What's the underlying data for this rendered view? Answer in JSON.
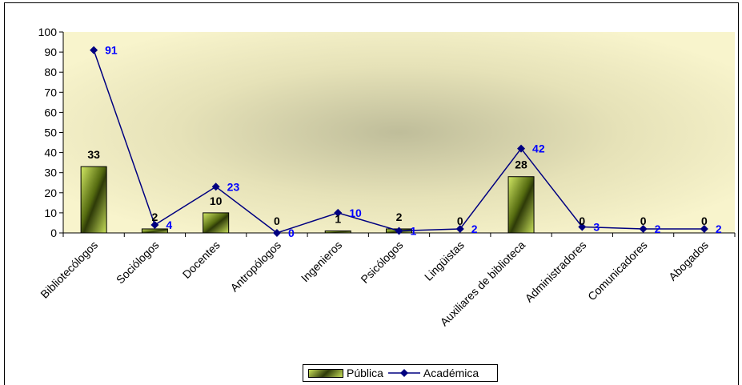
{
  "chart_data": {
    "type": "bar",
    "categories": [
      "Bibliotecólogos",
      "Sociólogos",
      "Docentes",
      "Antropólogos",
      "Ingenieros",
      "Psicólogos",
      "Lingüistas",
      "Auxiliares de biblioteca",
      "Administradores",
      "Comunicadores",
      "Abogados"
    ],
    "series": [
      {
        "name": "Pública",
        "kind": "bar",
        "values": [
          33,
          2,
          10,
          0,
          1,
          2,
          0,
          28,
          0,
          0,
          0
        ],
        "color": "#8ab020"
      },
      {
        "name": "Académica",
        "kind": "line",
        "values": [
          91,
          4,
          23,
          0,
          10,
          1,
          2,
          42,
          3,
          2,
          2
        ],
        "color": "#000080"
      }
    ],
    "bar_value_labels": [
      "33",
      "2",
      "10",
      "0",
      "1",
      "2",
      "0",
      "28",
      "0",
      "0",
      "0"
    ],
    "line_value_labels": [
      "91",
      "4",
      "23",
      "0",
      "10",
      "1",
      "2",
      "42",
      "3",
      "2",
      "2"
    ],
    "ylim": [
      0,
      100
    ],
    "yticks": [
      "0",
      "10",
      "20",
      "30",
      "40",
      "50",
      "60",
      "70",
      "80",
      "90",
      "100"
    ],
    "legend_position": "bottom",
    "grid": false,
    "colors": {
      "plot_background": "#f7f2c8",
      "plot_center": "#c8c6a4",
      "bar_light": "#c8e05a",
      "bar_dark": "#2e3a08",
      "line": "#000080",
      "line_label": "#0000ff"
    }
  }
}
